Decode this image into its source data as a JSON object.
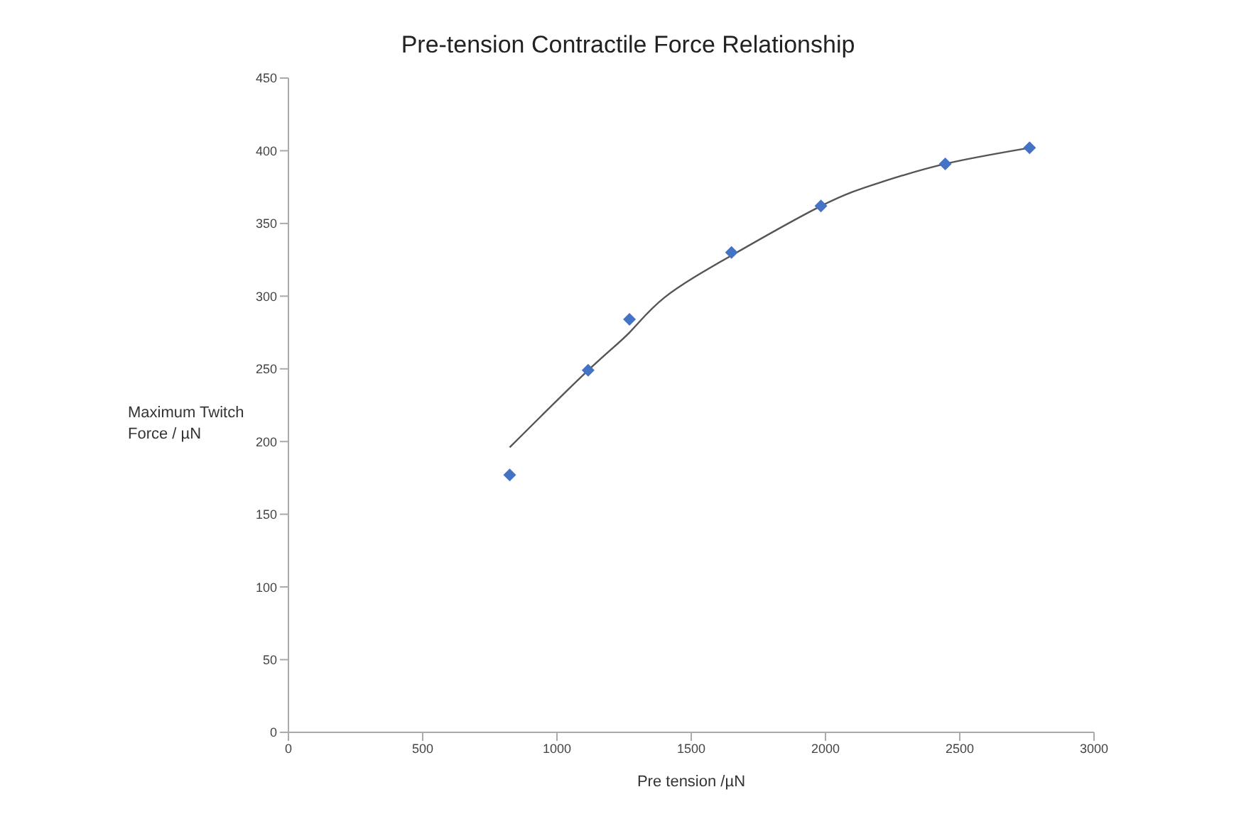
{
  "chart_data": {
    "type": "scatter",
    "title": "Pre-tension Contractile Force Relationship",
    "xlabel": "Pre tension /µN",
    "ylabel": "Maximum Twitch Force /  µN",
    "xlim": [
      0,
      3000
    ],
    "xticks": [
      0,
      500,
      1000,
      1500,
      2000,
      2500,
      3000
    ],
    "ylim": [
      0,
      450
    ],
    "yticks": [
      0,
      50,
      100,
      150,
      200,
      250,
      300,
      350,
      400,
      450
    ],
    "grid": false,
    "legend": false,
    "series": [
      {
        "color": "#4472c4",
        "marker": "diamond",
        "x": [
          824,
          1116,
          1270,
          1650,
          1983,
          2446,
          2760
        ],
        "values": [
          177,
          249,
          284,
          330,
          362,
          391,
          402
        ]
      },
      {
        "type": "line",
        "color": "#555555",
        "marker": "none",
        "line_style": "solid",
        "x": [
          824,
          1116,
          1270,
          1400,
          1650,
          1983,
          2200,
          2446,
          2760
        ],
        "values": [
          196,
          249,
          275,
          299,
          328,
          362,
          378,
          391,
          402
        ]
      }
    ]
  }
}
